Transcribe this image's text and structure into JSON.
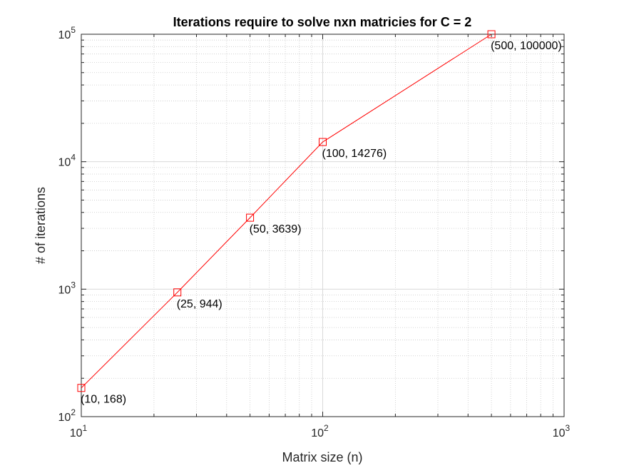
{
  "chart_data": {
    "type": "line",
    "title": "Iterations require to solve nxn matricies for C = 2",
    "xlabel": "Matrix size (n)",
    "ylabel": "# of iterations",
    "xscale": "log",
    "yscale": "log",
    "xlim": [
      10,
      1000
    ],
    "ylim": [
      100,
      100000
    ],
    "grid": "major and minor, dotted",
    "x_ticks": [
      {
        "base": "10",
        "exp": "1",
        "value": 10
      },
      {
        "base": "10",
        "exp": "2",
        "value": 100
      },
      {
        "base": "10",
        "exp": "3",
        "value": 1000
      }
    ],
    "y_ticks": [
      {
        "base": "10",
        "exp": "2",
        "value": 100
      },
      {
        "base": "10",
        "exp": "3",
        "value": 1000
      },
      {
        "base": "10",
        "exp": "4",
        "value": 10000
      },
      {
        "base": "10",
        "exp": "5",
        "value": 100000
      }
    ],
    "series": [
      {
        "color": "#ff0000",
        "marker": "square",
        "x": [
          10,
          25,
          50,
          100,
          500
        ],
        "y": [
          168,
          944,
          3639,
          14276,
          100000
        ]
      }
    ],
    "annotations": [
      "(10, 168)",
      "(25, 944)",
      "(50, 3639)",
      "(100, 14276)",
      "(500, 100000)"
    ]
  }
}
